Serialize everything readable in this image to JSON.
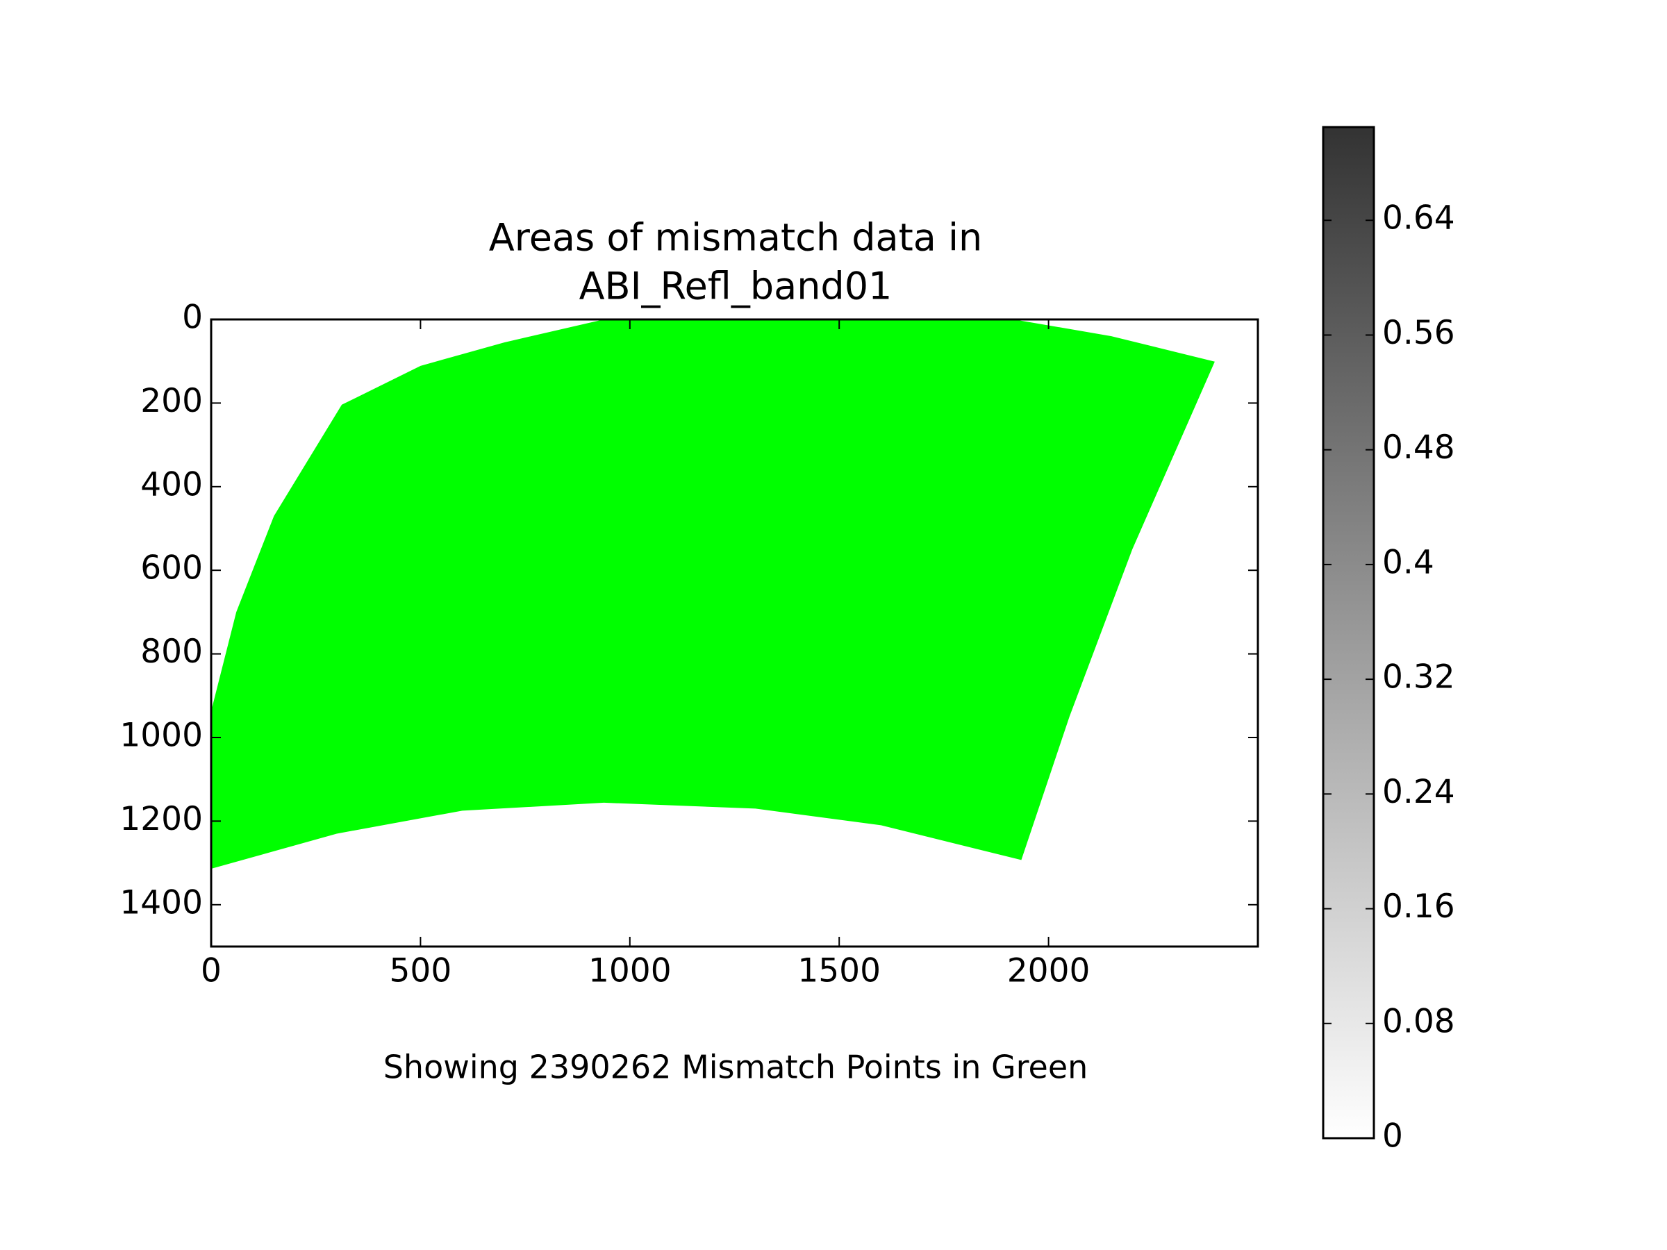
{
  "chart_data": {
    "type": "image",
    "title": [
      "Areas of mismatch data in",
      "ABI_Refl_band01"
    ],
    "xlabel": "Showing 2390262 Mismatch Points in Green",
    "xlim": [
      0,
      2500
    ],
    "ylim": [
      1500,
      0
    ],
    "xticks": [
      0,
      500,
      1000,
      1500,
      2000
    ],
    "yticks": [
      0,
      200,
      400,
      600,
      800,
      1000,
      1200,
      1400
    ],
    "region": {
      "color": "#00ff00",
      "x": [
        312,
        500,
        700,
        938,
        1917,
        2150,
        2397,
        2200,
        2050,
        1935,
        1600,
        1300,
        938,
        600,
        300,
        0,
        0,
        60,
        150
      ],
      "y": [
        204,
        111,
        55,
        0,
        0,
        40,
        101,
        550,
        950,
        1293,
        1210,
        1170,
        1156,
        1175,
        1230,
        1314,
        937,
        700,
        470
      ]
    },
    "colorbar": {
      "clim": [
        0,
        0.705
      ],
      "colors": [
        "#ffffff",
        "#333333"
      ],
      "ticks": [
        0,
        0.08,
        0.16,
        0.24,
        0.32,
        0.4,
        0.48,
        0.56,
        0.64
      ]
    }
  }
}
